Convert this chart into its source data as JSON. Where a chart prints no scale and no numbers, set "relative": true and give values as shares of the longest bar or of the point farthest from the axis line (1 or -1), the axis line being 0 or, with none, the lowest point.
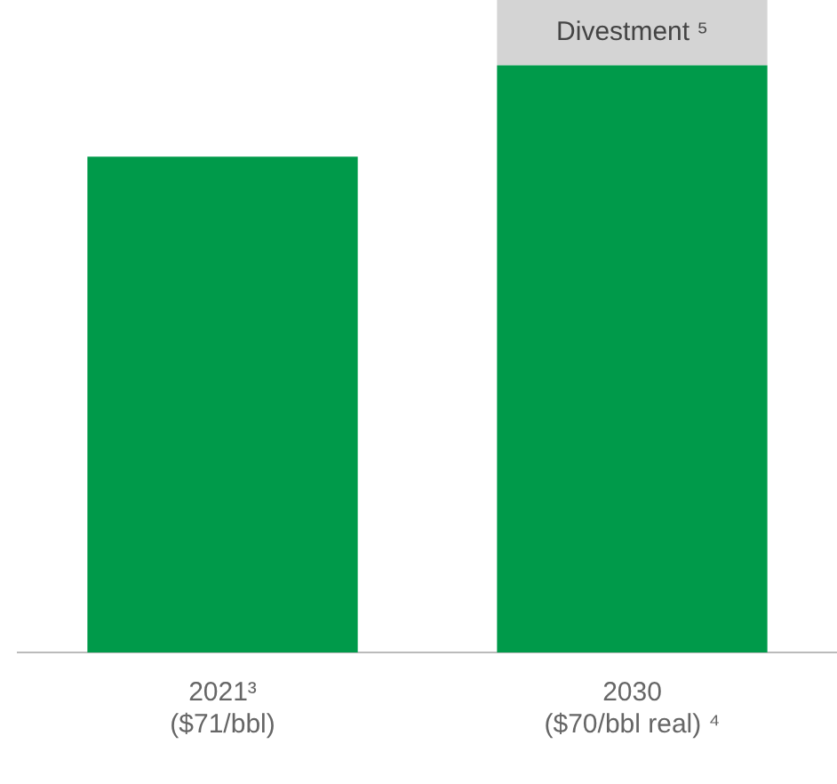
{
  "chart_data": {
    "type": "bar",
    "relative": true,
    "stacked": true,
    "legend": false,
    "grid": false,
    "categories": [
      "2021³\n($71/bbl)",
      "2030\n($70/bbl real) ⁴"
    ],
    "series": [
      {
        "color": "#009a4a",
        "values": [
          0.76,
          0.9
        ]
      },
      {
        "name": "Divestment ⁵",
        "color": "#d4d4d4",
        "values": [
          null,
          0.1
        ]
      }
    ]
  }
}
